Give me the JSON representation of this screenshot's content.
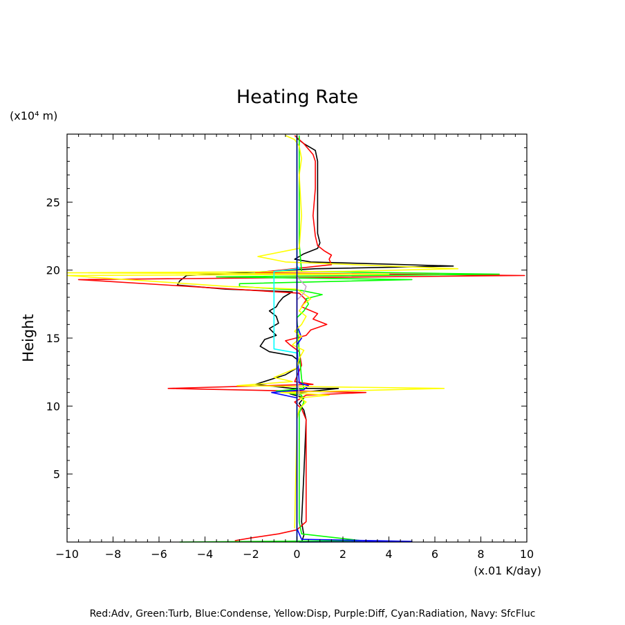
{
  "chart_data": {
    "type": "line",
    "title": "Heating Rate",
    "xlabel": "",
    "ylabel": "Height",
    "x_unit": "(x.01 K/day)",
    "y_unit": "(x10⁴ m)",
    "xlim": [
      -10,
      10
    ],
    "ylim": [
      0,
      30
    ],
    "x_ticks": [
      -10,
      -8,
      -6,
      -4,
      -2,
      0,
      2,
      4,
      6,
      8,
      10
    ],
    "x_tick_labels": [
      "−10",
      "−8",
      "−6",
      "−4",
      "−2",
      "0",
      "2",
      "4",
      "6",
      "8",
      "10"
    ],
    "y_ticks": [
      5,
      10,
      15,
      20,
      25
    ],
    "y_tick_labels": [
      "5",
      "10",
      "15",
      "20",
      "25"
    ],
    "grid": false,
    "legend_text": "Red:Adv, Green:Turb, Blue:Condense, Yellow:Disp, Purple:Diff, Cyan:Radiation, Navy: SfcFluc",
    "series": [
      {
        "color": "#000000",
        "points": [
          [
            0.2,
            0
          ],
          [
            0.3,
            0.5
          ],
          [
            0.2,
            1.5
          ],
          [
            0.3,
            5
          ],
          [
            0.4,
            9
          ],
          [
            0.3,
            9.7
          ],
          [
            0.1,
            10.2
          ],
          [
            0.3,
            10.6
          ],
          [
            -0.3,
            10.9
          ],
          [
            1.8,
            11.3
          ],
          [
            -0.2,
            11.3
          ],
          [
            -1.8,
            11.6
          ],
          [
            -0.5,
            12.3
          ],
          [
            0,
            12.8
          ],
          [
            0.1,
            13.3
          ],
          [
            -0.2,
            13.7
          ],
          [
            -1.2,
            14
          ],
          [
            -1.6,
            14.4
          ],
          [
            -1.4,
            14.9
          ],
          [
            -0.9,
            15.2
          ],
          [
            -1.2,
            15.7
          ],
          [
            -0.8,
            16.1
          ],
          [
            -0.9,
            16.6
          ],
          [
            -1.2,
            17
          ],
          [
            -0.9,
            17.3
          ],
          [
            -0.8,
            17.6
          ],
          [
            -0.6,
            18
          ],
          [
            -0.2,
            18.4
          ],
          [
            -3.1,
            18.6
          ],
          [
            -5.2,
            18.9
          ],
          [
            -5.1,
            19.2
          ],
          [
            -4.8,
            19.6
          ],
          [
            -1.2,
            19.9
          ],
          [
            0.8,
            20.1
          ],
          [
            6.8,
            20.3
          ],
          [
            0.6,
            20.6
          ],
          [
            -0.1,
            20.8
          ],
          [
            0.3,
            21.2
          ],
          [
            0.9,
            21.6
          ],
          [
            1,
            22
          ],
          [
            0.9,
            22.7
          ],
          [
            0.9,
            25
          ],
          [
            0.9,
            28
          ],
          [
            0.8,
            28.8
          ],
          [
            0.3,
            29.3
          ],
          [
            0,
            29.7
          ]
        ]
      },
      {
        "color": "#ff0000",
        "points": [
          [
            -2.7,
            0.1
          ],
          [
            -2,
            0.3
          ],
          [
            -0.8,
            0.6
          ],
          [
            0,
            0.9
          ],
          [
            0.4,
            1.5
          ],
          [
            0.4,
            5
          ],
          [
            0.4,
            9
          ],
          [
            0.2,
            9.8
          ],
          [
            -0.1,
            10.3
          ],
          [
            0.4,
            10.8
          ],
          [
            3,
            11
          ],
          [
            -5.6,
            11.3
          ],
          [
            0.7,
            11.6
          ],
          [
            -0.1,
            11.8
          ],
          [
            0.2,
            13
          ],
          [
            0.1,
            14
          ],
          [
            -0.3,
            14.5
          ],
          [
            -0.5,
            14.8
          ],
          [
            0.4,
            15.2
          ],
          [
            0.6,
            15.6
          ],
          [
            1.3,
            16
          ],
          [
            0.7,
            16.4
          ],
          [
            0.9,
            16.8
          ],
          [
            0.2,
            17.3
          ],
          [
            0.4,
            17.8
          ],
          [
            0.1,
            18.3
          ],
          [
            -9.5,
            19.3
          ],
          [
            9.9,
            19.6
          ],
          [
            -1.8,
            19.8
          ],
          [
            1.5,
            20.4
          ],
          [
            1.4,
            20.8
          ],
          [
            1.5,
            21.1
          ],
          [
            1.2,
            21.4
          ],
          [
            0.9,
            21.8
          ],
          [
            0.8,
            22.5
          ],
          [
            0.7,
            24
          ],
          [
            0.8,
            26
          ],
          [
            0.8,
            28
          ],
          [
            0.7,
            28.5
          ],
          [
            0.3,
            29.3
          ],
          [
            -0.1,
            29.9
          ]
        ]
      },
      {
        "color": "#00ff00",
        "points": [
          [
            -5.1,
            0
          ],
          [
            2.8,
            0.1
          ],
          [
            0.2,
            0.6
          ],
          [
            0.1,
            1.5
          ],
          [
            0.1,
            9
          ],
          [
            0.1,
            9.5
          ],
          [
            0.3,
            10.3
          ],
          [
            0.2,
            10.8
          ],
          [
            -0.9,
            11.1
          ],
          [
            0.3,
            11.3
          ],
          [
            0.2,
            12
          ],
          [
            0.1,
            14
          ],
          [
            0,
            16.5
          ],
          [
            0.3,
            17
          ],
          [
            0.5,
            17.5
          ],
          [
            0.4,
            17.9
          ],
          [
            1.1,
            18.2
          ],
          [
            0.2,
            18.5
          ],
          [
            -2.5,
            18.8
          ],
          [
            -2.5,
            19
          ],
          [
            5,
            19.3
          ],
          [
            -3.5,
            19.5
          ],
          [
            8.8,
            19.7
          ],
          [
            0.2,
            19.9
          ],
          [
            0.1,
            22
          ],
          [
            0.1,
            29.9
          ]
        ]
      },
      {
        "color": "#0000ff",
        "points": [
          [
            0.1,
            0
          ],
          [
            5,
            0.05
          ],
          [
            0.2,
            0.2
          ],
          [
            0,
            1
          ],
          [
            0,
            10
          ],
          [
            0,
            10.6
          ],
          [
            -1.1,
            11
          ],
          [
            0.3,
            11.2
          ],
          [
            0.5,
            11.5
          ],
          [
            0.1,
            11.7
          ],
          [
            0,
            14.5
          ],
          [
            0.2,
            15
          ],
          [
            0,
            16
          ],
          [
            0,
            18.5
          ],
          [
            0,
            29.9
          ]
        ]
      },
      {
        "color": "#ffff00",
        "points": [
          [
            -0.1,
            1
          ],
          [
            0,
            9
          ],
          [
            0.1,
            9.8
          ],
          [
            0.4,
            10.3
          ],
          [
            0.1,
            10.6
          ],
          [
            1.4,
            10.8
          ],
          [
            -0.7,
            11
          ],
          [
            6.4,
            11.3
          ],
          [
            -2.6,
            11.5
          ],
          [
            -0.2,
            11.8
          ],
          [
            -1,
            12.1
          ],
          [
            0,
            12.8
          ],
          [
            0.1,
            13.5
          ],
          [
            0.3,
            14.1
          ],
          [
            -0.2,
            14.5
          ],
          [
            0.2,
            15.1
          ],
          [
            -0.1,
            15.5
          ],
          [
            0.2,
            16
          ],
          [
            0.4,
            16.6
          ],
          [
            0.1,
            17
          ],
          [
            0.3,
            17.5
          ],
          [
            0.6,
            17.9
          ],
          [
            0,
            18.6
          ],
          [
            -3,
            18.8
          ],
          [
            -10,
            19.6
          ],
          [
            4,
            19.7
          ],
          [
            -10,
            19.8
          ],
          [
            2,
            19.9
          ],
          [
            7,
            20.1
          ],
          [
            -0.5,
            20.6
          ],
          [
            -1.7,
            21
          ],
          [
            0.1,
            21.6
          ],
          [
            0.2,
            24
          ],
          [
            0.1,
            27
          ],
          [
            0.2,
            28.2
          ],
          [
            0.1,
            29.1
          ],
          [
            -0.1,
            29.6
          ],
          [
            -0.5,
            29.9
          ]
        ]
      },
      {
        "color": "#c8a2c8",
        "points": [
          [
            0,
            0
          ],
          [
            0,
            10.5
          ],
          [
            0.1,
            11
          ],
          [
            0,
            12
          ],
          [
            0,
            17.8
          ],
          [
            0.3,
            18.3
          ],
          [
            0.4,
            18.8
          ],
          [
            0,
            19.5
          ],
          [
            0,
            29.9
          ]
        ]
      },
      {
        "color": "#00ffff",
        "points": [
          [
            0,
            0
          ],
          [
            0,
            13.9
          ],
          [
            -1,
            14.2
          ],
          [
            -1,
            19.9
          ],
          [
            0.1,
            20.1
          ],
          [
            0,
            20.3
          ],
          [
            0,
            29.9
          ]
        ]
      },
      {
        "color": "#000080",
        "points": [
          [
            0,
            0
          ],
          [
            0,
            29.9
          ]
        ]
      }
    ]
  }
}
